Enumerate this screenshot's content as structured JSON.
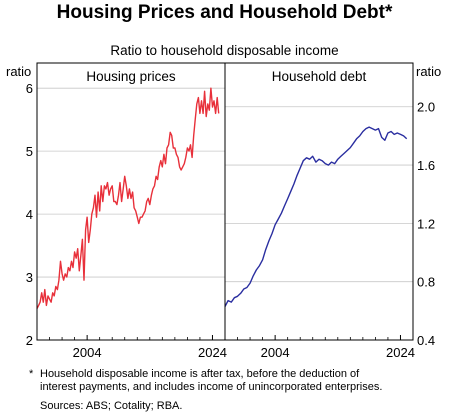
{
  "title": "Housing Prices and Household Debt*",
  "subtitle": "Ratio to household disposable income",
  "footnote_mark": "*",
  "footnote_lines": [
    "Household disposable income is after tax, before the deduction of",
    "interest payments, and includes income of unincorporated enterprises."
  ],
  "sources": "Sources: ABS; Cotality; RBA.",
  "chart_data": [
    {
      "type": "line",
      "panel_title": "Housing prices",
      "ylabel": "ratio",
      "ylim": [
        2,
        6.4
      ],
      "yticks": [
        2,
        3,
        4,
        5,
        6
      ],
      "xlim": [
        1996,
        2026
      ],
      "xticks": [
        2004,
        2024
      ],
      "color": "#e8303a",
      "x": [
        1996.0,
        1996.25,
        1996.5,
        1996.75,
        1997.0,
        1997.25,
        1997.5,
        1997.75,
        1998.0,
        1998.25,
        1998.5,
        1998.75,
        1999.0,
        1999.25,
        1999.5,
        1999.75,
        2000.0,
        2000.25,
        2000.5,
        2000.75,
        2001.0,
        2001.25,
        2001.5,
        2001.75,
        2002.0,
        2002.25,
        2002.5,
        2002.75,
        2003.0,
        2003.25,
        2003.5,
        2003.75,
        2004.0,
        2004.25,
        2004.5,
        2004.75,
        2005.0,
        2005.25,
        2005.5,
        2005.75,
        2006.0,
        2006.25,
        2006.5,
        2006.75,
        2007.0,
        2007.25,
        2007.5,
        2007.75,
        2008.0,
        2008.25,
        2008.5,
        2008.75,
        2009.0,
        2009.25,
        2009.5,
        2009.75,
        2010.0,
        2010.25,
        2010.5,
        2010.75,
        2011.0,
        2011.25,
        2011.5,
        2011.75,
        2012.0,
        2012.25,
        2012.5,
        2012.75,
        2013.0,
        2013.25,
        2013.5,
        2013.75,
        2014.0,
        2014.25,
        2014.5,
        2014.75,
        2015.0,
        2015.25,
        2015.5,
        2015.75,
        2016.0,
        2016.25,
        2016.5,
        2016.75,
        2017.0,
        2017.25,
        2017.5,
        2017.75,
        2018.0,
        2018.25,
        2018.5,
        2018.75,
        2019.0,
        2019.25,
        2019.5,
        2019.75,
        2020.0,
        2020.25,
        2020.5,
        2020.75,
        2021.0,
        2021.25,
        2021.5,
        2021.75,
        2022.0,
        2022.25,
        2022.5,
        2022.75,
        2023.0,
        2023.25,
        2023.5,
        2023.75,
        2024.0,
        2024.25,
        2024.5,
        2024.75,
        2025.0
      ],
      "values": [
        2.5,
        2.55,
        2.6,
        2.75,
        2.6,
        2.8,
        2.55,
        2.7,
        2.65,
        2.6,
        2.75,
        2.7,
        2.85,
        2.8,
        2.95,
        3.25,
        3.05,
        2.95,
        3.05,
        3.0,
        3.15,
        3.1,
        3.25,
        3.15,
        3.4,
        3.3,
        3.45,
        3.1,
        3.35,
        3.6,
        2.95,
        3.75,
        3.95,
        3.55,
        3.75,
        4.0,
        4.1,
        4.3,
        3.95,
        4.35,
        4.05,
        4.45,
        4.2,
        4.45,
        4.4,
        4.5,
        4.3,
        4.4,
        4.45,
        4.2,
        4.2,
        4.15,
        4.3,
        4.5,
        4.2,
        4.4,
        4.6,
        4.45,
        4.25,
        4.4,
        4.25,
        4.35,
        4.1,
        4.05,
        3.95,
        3.85,
        3.95,
        3.95,
        4.0,
        4.05,
        4.2,
        4.25,
        4.15,
        4.3,
        4.4,
        4.45,
        4.6,
        4.55,
        4.75,
        4.85,
        4.75,
        4.95,
        4.8,
        5.05,
        5.1,
        5.3,
        5.25,
        5.05,
        5.05,
        4.95,
        4.9,
        4.75,
        4.7,
        4.75,
        4.8,
        4.9,
        5.05,
        5.0,
        5.1,
        4.9,
        5.25,
        5.5,
        5.75,
        5.85,
        5.6,
        5.8,
        5.6,
        5.95,
        5.55,
        5.75,
        5.65,
        6.0,
        5.7,
        5.8,
        5.6,
        5.85,
        5.6
      ]
    },
    {
      "type": "line",
      "panel_title": "Household debt",
      "ylabel": "ratio",
      "ylim": [
        0.4,
        2.3
      ],
      "yticks": [
        0.4,
        0.8,
        1.2,
        1.6,
        2.0
      ],
      "xlim": [
        1996,
        2026
      ],
      "xticks": [
        2004,
        2024
      ],
      "color": "#2a2ea0",
      "x": [
        1996.0,
        1996.5,
        1997.0,
        1997.5,
        1998.0,
        1998.5,
        1999.0,
        1999.5,
        2000.0,
        2000.5,
        2001.0,
        2001.5,
        2002.0,
        2002.5,
        2003.0,
        2003.5,
        2004.0,
        2004.5,
        2005.0,
        2005.5,
        2006.0,
        2006.5,
        2007.0,
        2007.5,
        2008.0,
        2008.5,
        2009.0,
        2009.5,
        2010.0,
        2010.5,
        2011.0,
        2011.5,
        2012.0,
        2012.5,
        2013.0,
        2013.5,
        2014.0,
        2014.5,
        2015.0,
        2015.5,
        2016.0,
        2016.5,
        2017.0,
        2017.5,
        2018.0,
        2018.5,
        2019.0,
        2019.5,
        2020.0,
        2020.5,
        2021.0,
        2021.5,
        2022.0,
        2022.5,
        2023.0,
        2023.5,
        2024.0,
        2024.5,
        2025.0
      ],
      "values": [
        0.63,
        0.67,
        0.66,
        0.69,
        0.7,
        0.72,
        0.75,
        0.76,
        0.79,
        0.84,
        0.88,
        0.91,
        0.95,
        1.02,
        1.08,
        1.13,
        1.19,
        1.23,
        1.27,
        1.32,
        1.37,
        1.42,
        1.47,
        1.53,
        1.58,
        1.63,
        1.65,
        1.64,
        1.66,
        1.62,
        1.64,
        1.63,
        1.61,
        1.6,
        1.62,
        1.61,
        1.64,
        1.66,
        1.68,
        1.7,
        1.72,
        1.75,
        1.78,
        1.8,
        1.83,
        1.85,
        1.86,
        1.85,
        1.84,
        1.85,
        1.79,
        1.77,
        1.82,
        1.83,
        1.81,
        1.82,
        1.81,
        1.8,
        1.78
      ]
    }
  ],
  "colors": {
    "housing": "#e8303a",
    "debt": "#2a2ea0"
  }
}
